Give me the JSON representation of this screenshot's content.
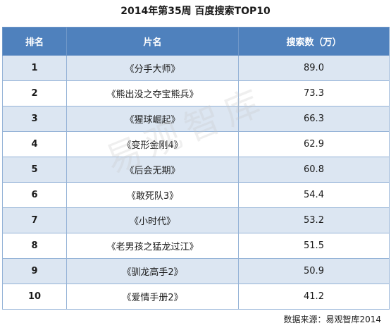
{
  "title": "2014年第35周 百度搜索TOP10",
  "table": {
    "headers": [
      "排名",
      "片名",
      "搜索数（万）"
    ],
    "rows": [
      {
        "rank": "1",
        "name": "《分手大师》",
        "value": "89.0"
      },
      {
        "rank": "2",
        "name": "《熊出没之夺宝熊兵》",
        "value": "73.3"
      },
      {
        "rank": "3",
        "name": "《猩球崛起》",
        "value": "66.3"
      },
      {
        "rank": "4",
        "name": "《变形金刚4》",
        "value": "62.9"
      },
      {
        "rank": "5",
        "name": "《后会无期》",
        "value": "60.8"
      },
      {
        "rank": "6",
        "name": "《敢死队3》",
        "value": "54.4"
      },
      {
        "rank": "7",
        "name": "《小时代》",
        "value": "53.2"
      },
      {
        "rank": "8",
        "name": "《老男孩之猛龙过江》",
        "value": "51.5"
      },
      {
        "rank": "9",
        "name": "《驯龙高手2》",
        "value": "50.9"
      },
      {
        "rank": "10",
        "name": "《爱情手册2》",
        "value": "41.2"
      }
    ]
  },
  "watermark": "易观智库",
  "source": "数据来源：易观智库2014",
  "colors": {
    "header_bg": "#4f81bd",
    "row_alt_bg": "#dce6f2",
    "border": "#95b3d7"
  }
}
